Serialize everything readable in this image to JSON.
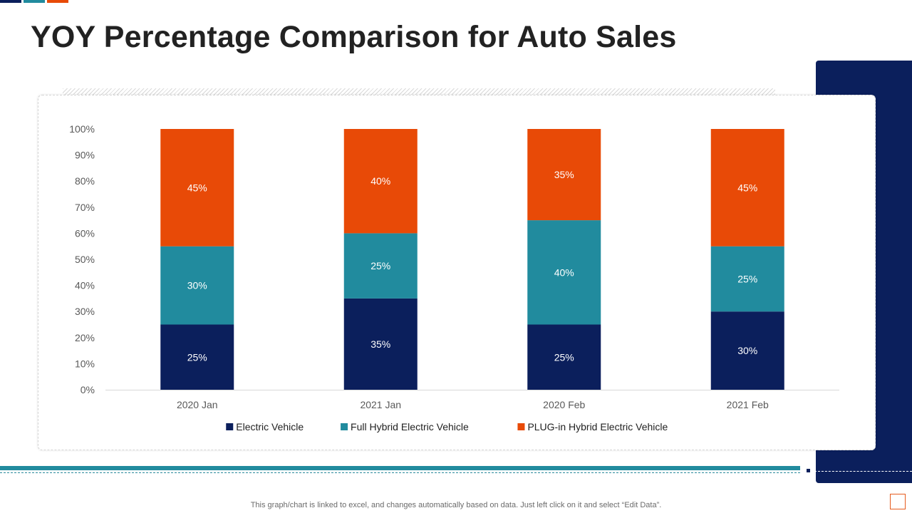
{
  "slide": {
    "title": "YOY Percentage Comparison for Auto Sales",
    "footer_note": "This graph/chart is linked to excel,  and changes automatically based on data. Just left click on it and select “Edit Data”."
  },
  "colors": {
    "navy": "#0b1f5c",
    "teal": "#218b9e",
    "orange": "#e84a07",
    "title": "#222222",
    "axis_text": "#595959"
  },
  "chart_data": {
    "type": "bar",
    "stacked": true,
    "categories": [
      "2020 Jan",
      "2021 Jan",
      "2020 Feb",
      "2021 Feb"
    ],
    "series": [
      {
        "name": "Electric Vehicle",
        "color": "#0b1f5c",
        "values": [
          25,
          35,
          25,
          30
        ]
      },
      {
        "name": "Full Hybrid Electric Vehicle",
        "color": "#218b9e",
        "values": [
          30,
          25,
          40,
          25
        ]
      },
      {
        "name": "PLUG-in Hybrid Electric Vehicle",
        "color": "#e84a07",
        "values": [
          45,
          40,
          35,
          45
        ]
      }
    ],
    "ylim": [
      0,
      100
    ],
    "yticks": [
      0,
      10,
      20,
      30,
      40,
      50,
      60,
      70,
      80,
      90,
      100
    ],
    "ytick_suffix": "%",
    "data_label_suffix": "%",
    "grid": false,
    "legend_position": "bottom",
    "title": "",
    "xlabel": "",
    "ylabel": ""
  }
}
